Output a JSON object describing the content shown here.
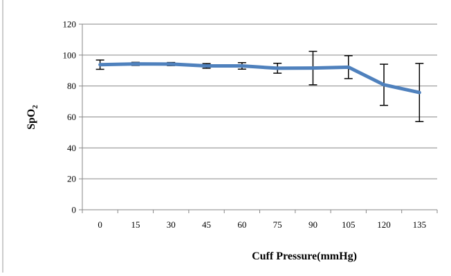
{
  "chart_data": {
    "type": "line",
    "title": "",
    "xlabel": "Cuff Pressure(mmHg)",
    "ylabel_main": "SpO",
    "ylabel_sub": "2",
    "ylim": [
      0,
      120
    ],
    "yticks": [
      0,
      20,
      40,
      60,
      80,
      100,
      120
    ],
    "grid": "horizontal",
    "legend": "none",
    "categories": [
      "0",
      "15",
      "30",
      "45",
      "60",
      "75",
      "90",
      "105",
      "120",
      "135"
    ],
    "series": [
      {
        "values": [
          93.8,
          94.3,
          94.2,
          93.0,
          93.0,
          91.5,
          91.6,
          92.2,
          80.8,
          75.8
        ],
        "error_low": [
          90.8,
          93.3,
          93.2,
          91.5,
          90.9,
          88.3,
          80.8,
          84.8,
          67.5,
          57.0
        ],
        "error_high": [
          96.8,
          95.3,
          95.2,
          94.5,
          95.1,
          94.7,
          102.4,
          99.6,
          94.1,
          94.6
        ],
        "color": "#4F81BD"
      }
    ],
    "gridline_color": "#868686",
    "errorbar_color": "#000000"
  }
}
